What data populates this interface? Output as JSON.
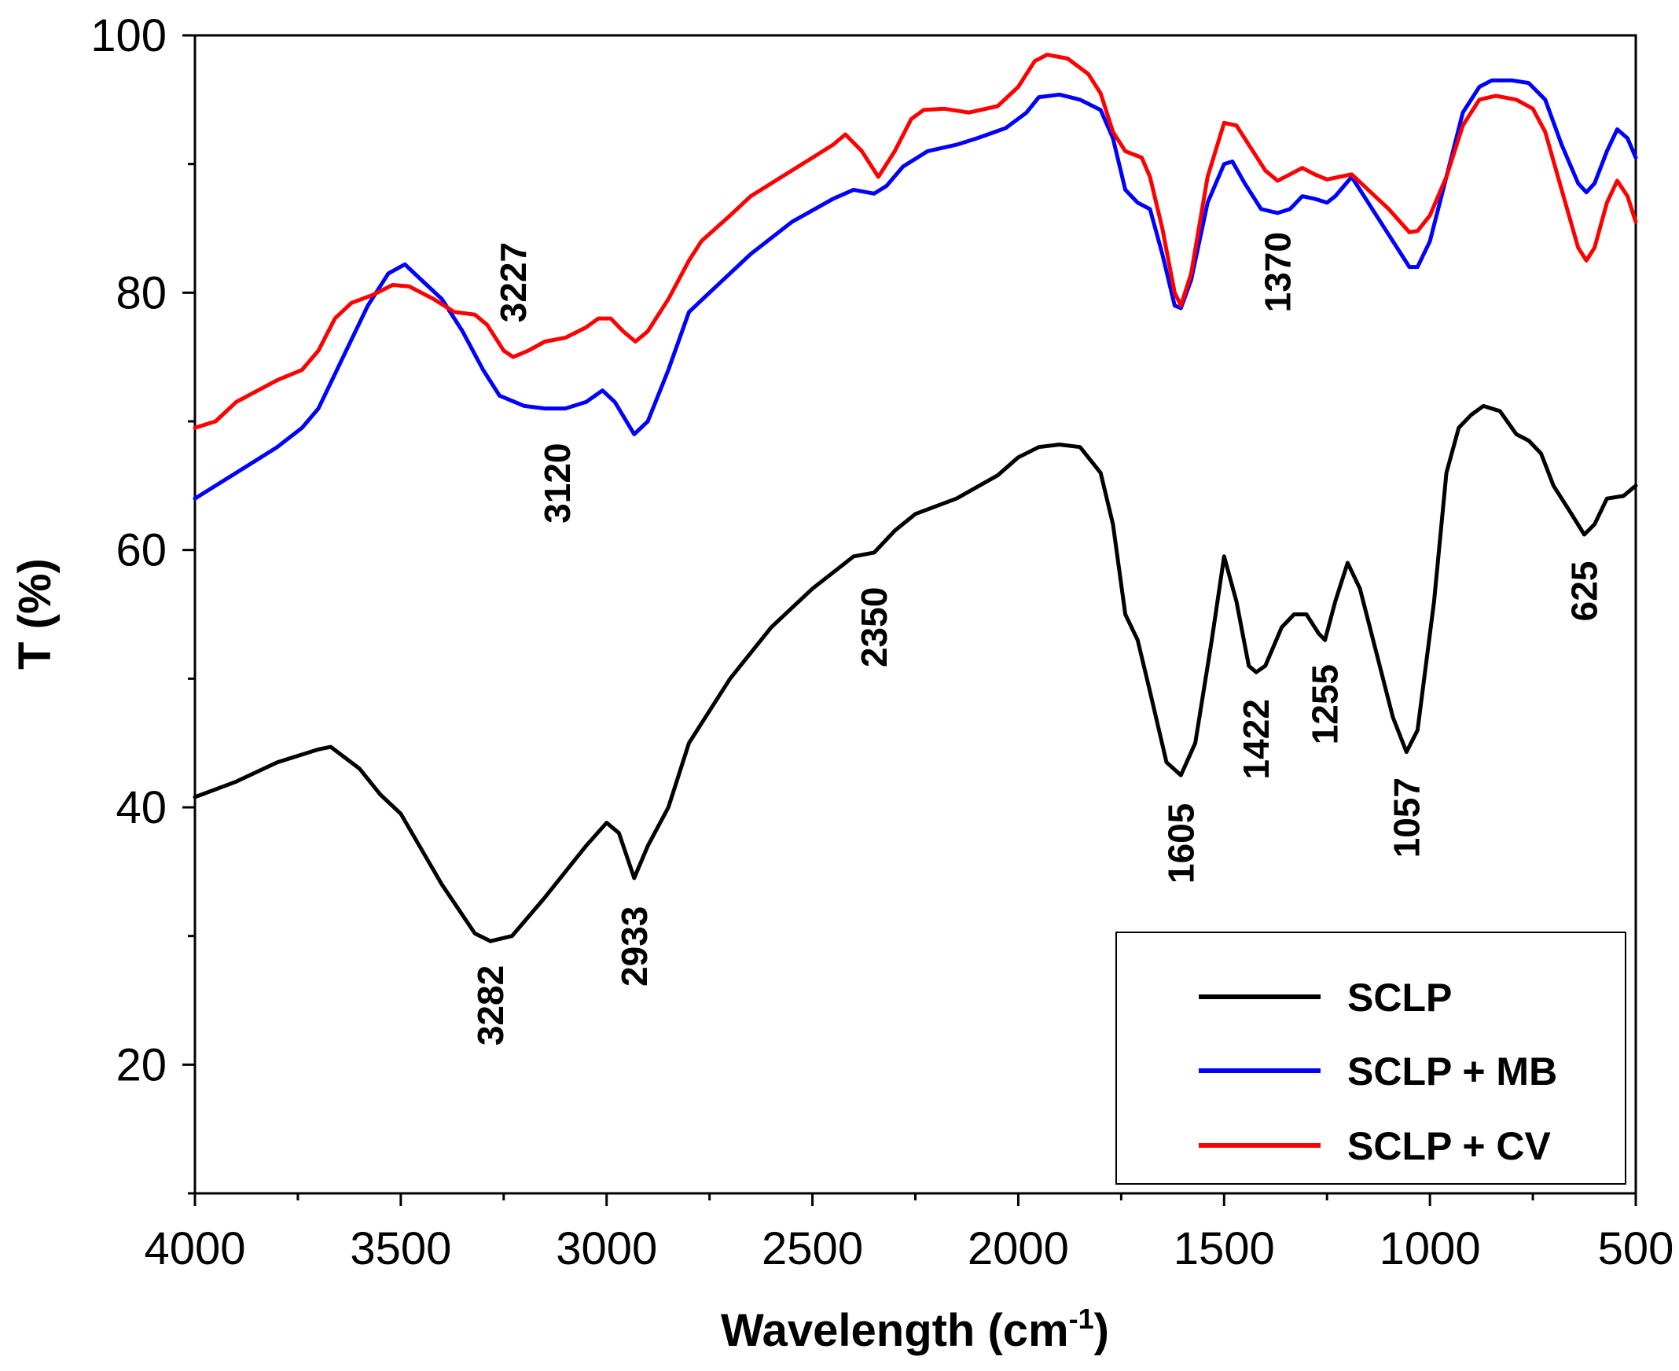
{
  "chart_data": {
    "type": "line",
    "xlabel": "Wavelength (cm",
    "xlabel_sup": "-1",
    "xlabel_close": ")",
    "ylabel": "T (%)",
    "xlim": [
      4000,
      500
    ],
    "ylim": [
      10,
      100
    ],
    "xticks": [
      4000,
      3500,
      3000,
      2500,
      2000,
      1500,
      1000,
      500
    ],
    "xtick_labels": [
      "4000",
      "3500",
      "3000",
      "2500",
      "2000",
      "1500",
      "1000",
      "500"
    ],
    "yticks": [
      20,
      40,
      60,
      80,
      100
    ],
    "ytick_labels": [
      "20",
      "40",
      "60",
      "80",
      "100"
    ],
    "grid": false,
    "legend_position": "bottom-right",
    "series": [
      {
        "name": "SCLP",
        "color": "#000000",
        "points": [
          [
            4000,
            40.8
          ],
          [
            3900,
            42
          ],
          [
            3800,
            43.5
          ],
          [
            3700,
            44.5
          ],
          [
            3670,
            44.7
          ],
          [
            3600,
            43
          ],
          [
            3550,
            41
          ],
          [
            3500,
            39.5
          ],
          [
            3400,
            34
          ],
          [
            3320,
            30.2
          ],
          [
            3282,
            29.6
          ],
          [
            3230,
            30
          ],
          [
            3150,
            33
          ],
          [
            3050,
            37
          ],
          [
            3000,
            38.8
          ],
          [
            2970,
            38
          ],
          [
            2933,
            34.5
          ],
          [
            2900,
            37
          ],
          [
            2850,
            40
          ],
          [
            2800,
            45
          ],
          [
            2750,
            47.5
          ],
          [
            2700,
            50
          ],
          [
            2600,
            54
          ],
          [
            2500,
            57
          ],
          [
            2400,
            59.5
          ],
          [
            2350,
            59.8
          ],
          [
            2300,
            61.5
          ],
          [
            2250,
            62.8
          ],
          [
            2150,
            64
          ],
          [
            2050,
            65.8
          ],
          [
            2000,
            67.2
          ],
          [
            1950,
            68
          ],
          [
            1900,
            68.2
          ],
          [
            1850,
            68
          ],
          [
            1800,
            66
          ],
          [
            1770,
            62
          ],
          [
            1740,
            55
          ],
          [
            1710,
            53
          ],
          [
            1680,
            49
          ],
          [
            1640,
            43.5
          ],
          [
            1605,
            42.5
          ],
          [
            1570,
            45
          ],
          [
            1530,
            53
          ],
          [
            1500,
            59.5
          ],
          [
            1470,
            56
          ],
          [
            1440,
            51
          ],
          [
            1422,
            50.5
          ],
          [
            1400,
            51
          ],
          [
            1360,
            54
          ],
          [
            1330,
            55
          ],
          [
            1300,
            55
          ],
          [
            1270,
            53.5
          ],
          [
            1255,
            53
          ],
          [
            1230,
            56
          ],
          [
            1200,
            59
          ],
          [
            1170,
            57
          ],
          [
            1130,
            52
          ],
          [
            1090,
            47
          ],
          [
            1057,
            44.3
          ],
          [
            1030,
            46
          ],
          [
            990,
            56
          ],
          [
            960,
            66
          ],
          [
            930,
            69.5
          ],
          [
            900,
            70.5
          ],
          [
            870,
            71.2
          ],
          [
            830,
            70.8
          ],
          [
            790,
            69
          ],
          [
            760,
            68.5
          ],
          [
            730,
            67.5
          ],
          [
            700,
            65
          ],
          [
            660,
            63
          ],
          [
            625,
            61.2
          ],
          [
            600,
            62
          ],
          [
            570,
            64
          ],
          [
            530,
            64.2
          ],
          [
            500,
            65
          ]
        ]
      },
      {
        "name": "SCLP + MB",
        "color": "#0000ff",
        "points": [
          [
            4000,
            64
          ],
          [
            3900,
            66
          ],
          [
            3800,
            68
          ],
          [
            3740,
            69.5
          ],
          [
            3700,
            71
          ],
          [
            3640,
            75
          ],
          [
            3580,
            79
          ],
          [
            3530,
            81.5
          ],
          [
            3490,
            82.2
          ],
          [
            3450,
            81
          ],
          [
            3400,
            79.5
          ],
          [
            3350,
            77
          ],
          [
            3300,
            74
          ],
          [
            3260,
            72
          ],
          [
            3200,
            71.2
          ],
          [
            3150,
            71
          ],
          [
            3100,
            71
          ],
          [
            3050,
            71.5
          ],
          [
            3010,
            72.4
          ],
          [
            2980,
            71.5
          ],
          [
            2933,
            69
          ],
          [
            2900,
            70
          ],
          [
            2850,
            74
          ],
          [
            2800,
            78.5
          ],
          [
            2750,
            80
          ],
          [
            2650,
            83
          ],
          [
            2550,
            85.5
          ],
          [
            2450,
            87.3
          ],
          [
            2400,
            88
          ],
          [
            2350,
            87.7
          ],
          [
            2320,
            88.3
          ],
          [
            2280,
            89.8
          ],
          [
            2220,
            91
          ],
          [
            2150,
            91.5
          ],
          [
            2100,
            92
          ],
          [
            2030,
            92.8
          ],
          [
            1980,
            94
          ],
          [
            1950,
            95.2
          ],
          [
            1900,
            95.4
          ],
          [
            1850,
            95
          ],
          [
            1800,
            94.2
          ],
          [
            1770,
            92
          ],
          [
            1740,
            88
          ],
          [
            1710,
            87
          ],
          [
            1680,
            86.5
          ],
          [
            1650,
            83
          ],
          [
            1620,
            79
          ],
          [
            1605,
            78.8
          ],
          [
            1580,
            81
          ],
          [
            1540,
            87
          ],
          [
            1500,
            90
          ],
          [
            1480,
            90.2
          ],
          [
            1450,
            88.5
          ],
          [
            1410,
            86.5
          ],
          [
            1370,
            86.2
          ],
          [
            1340,
            86.5
          ],
          [
            1310,
            87.5
          ],
          [
            1280,
            87.3
          ],
          [
            1250,
            87
          ],
          [
            1230,
            87.5
          ],
          [
            1190,
            89
          ],
          [
            1150,
            87
          ],
          [
            1100,
            84.5
          ],
          [
            1050,
            82
          ],
          [
            1030,
            82
          ],
          [
            1000,
            84
          ],
          [
            960,
            89
          ],
          [
            920,
            94
          ],
          [
            880,
            96
          ],
          [
            850,
            96.5
          ],
          [
            800,
            96.5
          ],
          [
            760,
            96.3
          ],
          [
            720,
            95
          ],
          [
            680,
            91.5
          ],
          [
            640,
            88.5
          ],
          [
            620,
            87.8
          ],
          [
            600,
            88.5
          ],
          [
            570,
            91
          ],
          [
            545,
            92.7
          ],
          [
            520,
            92
          ],
          [
            500,
            90.5
          ]
        ]
      },
      {
        "name": "SCLP + CV",
        "color": "#ff0000",
        "points": [
          [
            4000,
            69.5
          ],
          [
            3950,
            70
          ],
          [
            3900,
            71.5
          ],
          [
            3800,
            73.2
          ],
          [
            3740,
            74
          ],
          [
            3700,
            75.5
          ],
          [
            3660,
            78
          ],
          [
            3620,
            79.2
          ],
          [
            3570,
            79.8
          ],
          [
            3520,
            80.6
          ],
          [
            3480,
            80.5
          ],
          [
            3420,
            79.5
          ],
          [
            3370,
            78.5
          ],
          [
            3320,
            78.3
          ],
          [
            3290,
            77.5
          ],
          [
            3250,
            75.5
          ],
          [
            3227,
            75
          ],
          [
            3190,
            75.5
          ],
          [
            3150,
            76.2
          ],
          [
            3100,
            76.5
          ],
          [
            3050,
            77.3
          ],
          [
            3020,
            78
          ],
          [
            2990,
            78
          ],
          [
            2960,
            77
          ],
          [
            2930,
            76.2
          ],
          [
            2900,
            77
          ],
          [
            2850,
            79.5
          ],
          [
            2800,
            82.5
          ],
          [
            2770,
            84
          ],
          [
            2700,
            86
          ],
          [
            2650,
            87.5
          ],
          [
            2550,
            89.5
          ],
          [
            2450,
            91.5
          ],
          [
            2420,
            92.3
          ],
          [
            2380,
            91
          ],
          [
            2340,
            89
          ],
          [
            2300,
            91
          ],
          [
            2260,
            93.5
          ],
          [
            2230,
            94.2
          ],
          [
            2180,
            94.3
          ],
          [
            2120,
            94
          ],
          [
            2050,
            94.5
          ],
          [
            2000,
            96
          ],
          [
            1960,
            98
          ],
          [
            1930,
            98.5
          ],
          [
            1880,
            98.2
          ],
          [
            1830,
            97
          ],
          [
            1800,
            95.5
          ],
          [
            1770,
            92.5
          ],
          [
            1740,
            91
          ],
          [
            1700,
            90.5
          ],
          [
            1680,
            89
          ],
          [
            1650,
            85
          ],
          [
            1620,
            80
          ],
          [
            1605,
            79
          ],
          [
            1580,
            81.5
          ],
          [
            1540,
            89
          ],
          [
            1500,
            93.2
          ],
          [
            1470,
            93
          ],
          [
            1440,
            91.5
          ],
          [
            1400,
            89.5
          ],
          [
            1370,
            88.7
          ],
          [
            1340,
            89.2
          ],
          [
            1310,
            89.7
          ],
          [
            1280,
            89.2
          ],
          [
            1250,
            88.8
          ],
          [
            1220,
            89
          ],
          [
            1190,
            89.2
          ],
          [
            1150,
            88
          ],
          [
            1100,
            86.5
          ],
          [
            1050,
            84.7
          ],
          [
            1030,
            84.8
          ],
          [
            1000,
            86
          ],
          [
            960,
            89
          ],
          [
            920,
            93
          ],
          [
            880,
            95
          ],
          [
            840,
            95.3
          ],
          [
            790,
            95
          ],
          [
            750,
            94.3
          ],
          [
            720,
            92.5
          ],
          [
            680,
            88
          ],
          [
            640,
            83.5
          ],
          [
            620,
            82.5
          ],
          [
            600,
            83.5
          ],
          [
            570,
            87
          ],
          [
            545,
            88.7
          ],
          [
            520,
            87.5
          ],
          [
            500,
            85.5
          ]
        ]
      }
    ],
    "annotations": [
      {
        "text": "3227",
        "x": 3227,
        "y": 80.8
      },
      {
        "text": "3120",
        "x": 3120,
        "y": 65.2
      },
      {
        "text": "3282",
        "x": 3282,
        "y": 24.6
      },
      {
        "text": "2933",
        "x": 2933,
        "y": 29.2
      },
      {
        "text": "2350",
        "x": 2350,
        "y": 54
      },
      {
        "text": "1605",
        "x": 1605,
        "y": 37.2
      },
      {
        "text": "1422",
        "x": 1422,
        "y": 45.3
      },
      {
        "text": "1255",
        "x": 1255,
        "y": 48
      },
      {
        "text": "1057",
        "x": 1057,
        "y": 39.2
      },
      {
        "text": "1370",
        "x": 1370,
        "y": 81.6
      },
      {
        "text": "625",
        "x": 625,
        "y": 56.8
      }
    ],
    "legend": [
      "SCLP",
      "SCLP + MB",
      "SCLP + CV"
    ]
  }
}
